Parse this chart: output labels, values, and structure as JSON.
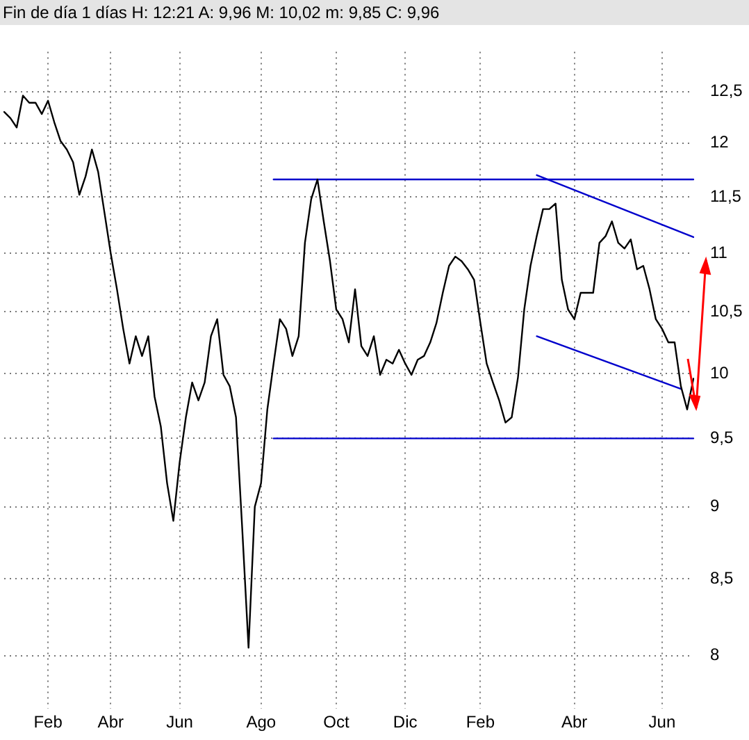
{
  "chart_data": {
    "type": "line",
    "title": "Fin de día 1 días H: 12:21 A: 9,96 M: 10,02 m: 9,85 C: 9,96",
    "categories": [
      null,
      null,
      null,
      null,
      null,
      null,
      null,
      "Feb",
      null,
      null,
      null,
      null,
      null,
      null,
      null,
      null,
      null,
      "Abr",
      null,
      null,
      null,
      null,
      null,
      null,
      null,
      null,
      null,
      null,
      "Jun",
      null,
      null,
      null,
      null,
      null,
      null,
      null,
      null,
      null,
      null,
      null,
      null,
      "Ago",
      null,
      null,
      null,
      null,
      null,
      null,
      null,
      null,
      null,
      null,
      null,
      "Oct",
      null,
      null,
      null,
      null,
      null,
      null,
      null,
      null,
      null,
      null,
      "Dic",
      null,
      null,
      null,
      null,
      null,
      null,
      null,
      null,
      null,
      null,
      null,
      "Feb",
      null,
      null,
      null,
      null,
      null,
      null,
      null,
      null,
      null,
      null,
      null,
      null,
      null,
      null,
      "Abr",
      null,
      null,
      null,
      null,
      null,
      null,
      null,
      null,
      null,
      null,
      null,
      null,
      null,
      "Jun",
      null,
      null,
      null,
      null,
      null
    ],
    "series": [
      {
        "type": "line",
        "color": "#000000",
        "values": [
          12.3,
          12.24,
          12.15,
          12.46,
          12.39,
          12.39,
          12.28,
          12.41,
          12.2,
          12.02,
          11.94,
          11.82,
          11.52,
          11.69,
          11.94,
          11.73,
          11.36,
          11.0,
          10.69,
          10.36,
          10.08,
          10.3,
          10.14,
          10.3,
          9.82,
          9.59,
          9.17,
          8.9,
          9.32,
          9.66,
          9.93,
          9.79,
          9.93,
          10.3,
          10.44,
          9.99,
          9.9,
          9.66,
          8.84,
          8.05,
          9.0,
          9.17,
          9.72,
          10.08,
          10.44,
          10.36,
          10.14,
          10.3,
          11.09,
          11.48,
          11.66,
          11.28,
          10.93,
          10.52,
          10.44,
          10.25,
          10.69,
          10.22,
          10.14,
          10.3,
          9.99,
          10.11,
          10.08,
          10.19,
          10.08,
          9.99,
          10.11,
          10.14,
          10.25,
          10.41,
          10.66,
          10.89,
          10.97,
          10.93,
          10.86,
          10.77,
          10.41,
          10.08,
          9.93,
          9.79,
          9.62,
          9.66,
          9.97,
          10.52,
          10.89,
          11.15,
          11.39,
          11.39,
          11.44,
          10.77,
          10.52,
          10.44,
          10.66,
          10.66,
          10.66,
          11.09,
          11.15,
          11.28,
          11.09,
          11.04,
          11.12,
          10.86,
          10.89,
          10.69,
          10.44,
          10.36,
          10.25,
          10.25,
          9.9,
          9.72,
          9.96
        ]
      },
      {
        "type": "line",
        "color": "#0000cc",
        "values": [
          null,
          null,
          null,
          null,
          null,
          null,
          null,
          null,
          null,
          null,
          null,
          null,
          null,
          null,
          null,
          null,
          null,
          null,
          null,
          null,
          null,
          null,
          null,
          null,
          null,
          null,
          null,
          null,
          null,
          null,
          null,
          null,
          null,
          null,
          null,
          null,
          null,
          null,
          null,
          null,
          null,
          null,
          null,
          11.66,
          null,
          null,
          null,
          null,
          null,
          null,
          null,
          null,
          null,
          null,
          null,
          null,
          null,
          null,
          null,
          null,
          null,
          null,
          null,
          null,
          null,
          null,
          null,
          null,
          null,
          null,
          null,
          null,
          null,
          null,
          null,
          null,
          null,
          null,
          null,
          null,
          null,
          null,
          null,
          null,
          null,
          null,
          null,
          null,
          null,
          null,
          null,
          null,
          null,
          null,
          null,
          null,
          null,
          null,
          null,
          null,
          null,
          null,
          null,
          null,
          null,
          null,
          null,
          null,
          null,
          null,
          11.66
        ]
      },
      {
        "type": "line",
        "color": "#0000cc",
        "values": [
          null,
          null,
          null,
          null,
          null,
          null,
          null,
          null,
          null,
          null,
          null,
          null,
          null,
          null,
          null,
          null,
          null,
          null,
          null,
          null,
          null,
          null,
          null,
          null,
          null,
          null,
          null,
          null,
          null,
          null,
          null,
          null,
          null,
          null,
          null,
          null,
          null,
          null,
          null,
          null,
          null,
          null,
          null,
          9.5,
          null,
          null,
          null,
          null,
          null,
          null,
          null,
          null,
          null,
          null,
          null,
          null,
          null,
          null,
          null,
          null,
          null,
          null,
          null,
          null,
          null,
          null,
          null,
          null,
          null,
          null,
          null,
          null,
          null,
          null,
          null,
          null,
          null,
          null,
          null,
          null,
          null,
          null,
          null,
          null,
          null,
          null,
          null,
          null,
          null,
          null,
          null,
          null,
          null,
          null,
          null,
          null,
          null,
          null,
          null,
          null,
          null,
          null,
          null,
          null,
          null,
          null,
          null,
          null,
          null,
          null,
          9.5
        ]
      },
      {
        "type": "line",
        "color": "#0000cc",
        "values": [
          null,
          null,
          null,
          null,
          null,
          null,
          null,
          null,
          null,
          null,
          null,
          null,
          null,
          null,
          null,
          null,
          null,
          null,
          null,
          null,
          null,
          null,
          null,
          null,
          null,
          null,
          null,
          null,
          null,
          null,
          null,
          null,
          null,
          null,
          null,
          null,
          null,
          null,
          null,
          null,
          null,
          null,
          null,
          null,
          null,
          null,
          null,
          null,
          null,
          null,
          null,
          null,
          null,
          null,
          null,
          null,
          null,
          null,
          null,
          null,
          null,
          null,
          null,
          null,
          null,
          null,
          null,
          null,
          null,
          null,
          null,
          null,
          null,
          null,
          null,
          null,
          null,
          null,
          null,
          null,
          null,
          null,
          null,
          null,
          null,
          11.7,
          null,
          null,
          null,
          null,
          null,
          null,
          null,
          null,
          null,
          null,
          null,
          null,
          null,
          null,
          null,
          null,
          null,
          null,
          null,
          null,
          null,
          null,
          null,
          null,
          11.14
        ]
      },
      {
        "type": "line",
        "color": "#0000cc",
        "values": [
          null,
          null,
          null,
          null,
          null,
          null,
          null,
          null,
          null,
          null,
          null,
          null,
          null,
          null,
          null,
          null,
          null,
          null,
          null,
          null,
          null,
          null,
          null,
          null,
          null,
          null,
          null,
          null,
          null,
          null,
          null,
          null,
          null,
          null,
          null,
          null,
          null,
          null,
          null,
          null,
          null,
          null,
          null,
          null,
          null,
          null,
          null,
          null,
          null,
          null,
          null,
          null,
          null,
          null,
          null,
          null,
          null,
          null,
          null,
          null,
          null,
          null,
          null,
          null,
          null,
          null,
          null,
          null,
          null,
          null,
          null,
          null,
          null,
          null,
          null,
          null,
          null,
          null,
          null,
          null,
          null,
          null,
          null,
          null,
          null,
          10.3,
          null,
          null,
          null,
          null,
          null,
          null,
          null,
          null,
          null,
          null,
          null,
          null,
          null,
          null,
          null,
          null,
          null,
          null,
          null,
          null,
          null,
          null,
          9.88,
          null,
          null
        ]
      }
    ],
    "ylim": [
      7.67,
      12.9
    ],
    "yticks": [
      8,
      {
        "value": 8.5,
        "label": "8,5"
      },
      9,
      {
        "value": 9.5,
        "label": "9,5"
      },
      10,
      {
        "value": 10.5,
        "label": "10,5"
      },
      11,
      {
        "value": 11.5,
        "label": "11,5"
      },
      12,
      {
        "value": 12.5,
        "label": "12,5"
      }
    ],
    "log": "y",
    "grid": true
  }
}
